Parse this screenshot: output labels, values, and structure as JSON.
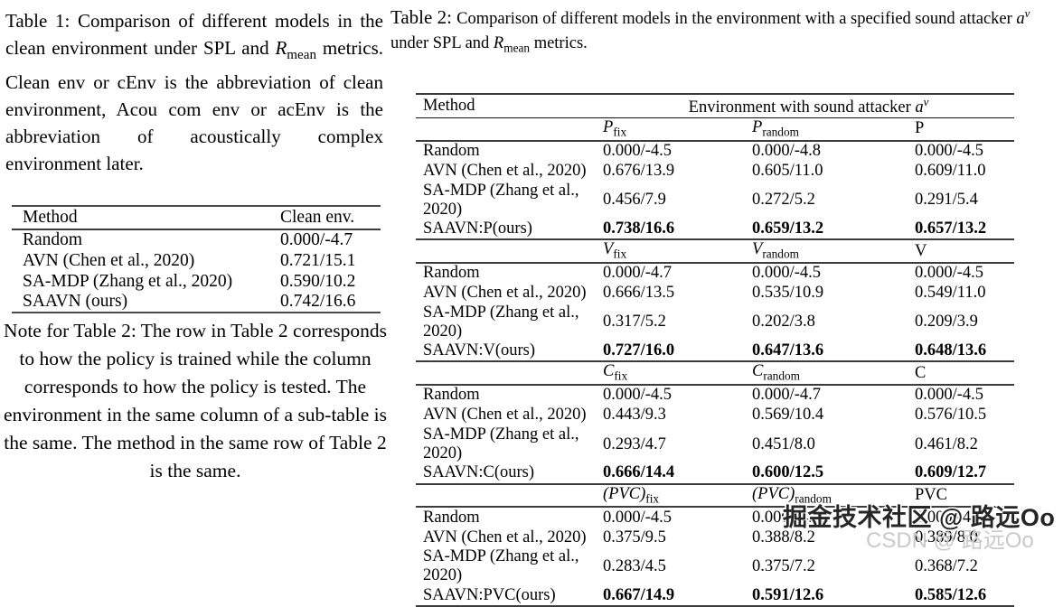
{
  "left_column": {
    "table1_caption_segments": [
      {
        "t": "Table 1:  Comparison of different models in the clean environment under SPL and ",
        "s": ""
      },
      {
        "t": "R",
        "s": "i"
      },
      {
        "t": "mean",
        "s": "sub"
      },
      {
        "t": " metrics. Clean env or cEnv is the abbreviation of clean environment, Acou com env or acEnv is the abbreviation of acoustically complex environment later.",
        "s": ""
      }
    ],
    "table1": {
      "headers": [
        "Method",
        "Clean env."
      ],
      "rows": [
        {
          "method": "Random",
          "value": "0.000/-4.7",
          "bold": false
        },
        {
          "method": "AVN (Chen et al., 2020)",
          "value": "0.721/15.1",
          "bold": false
        },
        {
          "method": "SA-MDP (Zhang et al., 2020)",
          "value": "0.590/10.2",
          "bold": false
        },
        {
          "method": "SAAVN (ours)",
          "value": "0.742/16.6",
          "bold": true
        }
      ]
    },
    "note_text": "Note for Table 2: The row in Table 2 corresponds to how the policy is trained while the column corresponds to how the policy is tested. The environment in the same column of a sub-table is the same. The method in the same row of Table 2 is the same."
  },
  "right_column": {
    "table2_caption_segments": [
      {
        "t": "Table 2: ",
        "s": "label"
      },
      {
        "t": "Comparison of different models in the environment with a specified sound attacker ",
        "s": ""
      },
      {
        "t": "a",
        "s": "i"
      },
      {
        "t": "ν",
        "s": "isup"
      },
      {
        "t": " under SPL and ",
        "s": ""
      },
      {
        "t": "R",
        "s": "i"
      },
      {
        "t": "mean",
        "s": "sub"
      },
      {
        "t": " metrics.",
        "s": ""
      }
    ],
    "table2": {
      "header": {
        "method": "Method",
        "span_segments": [
          {
            "t": "Environment with sound attacker ",
            "s": ""
          },
          {
            "t": "a",
            "s": "i"
          },
          {
            "t": "ν",
            "s": "isup"
          }
        ]
      },
      "blocks": [
        {
          "columns": [
            {
              "base": "P",
              "sub": "fix",
              "italic": true
            },
            {
              "base": "P",
              "sub": "random",
              "italic": true
            },
            {
              "base": "P",
              "sub": "",
              "italic": false
            }
          ],
          "rows": [
            {
              "method": "Random",
              "values": [
                "0.000/-4.5",
                "0.000/-4.8",
                "0.000/-4.5"
              ],
              "bold": false
            },
            {
              "method": "AVN (Chen et al., 2020)",
              "values": [
                "0.676/13.9",
                "0.605/11.0",
                "0.609/11.0"
              ],
              "bold": false
            },
            {
              "method": "SA-MDP (Zhang et al., 2020)",
              "values": [
                "0.456/7.9",
                "0.272/5.2",
                "0.291/5.4"
              ],
              "bold": false
            },
            {
              "method": "SAAVN:P(ours)",
              "values": [
                "0.738/16.6",
                "0.659/13.2",
                "0.657/13.2"
              ],
              "bold": true
            }
          ]
        },
        {
          "columns": [
            {
              "base": "V",
              "sub": "fix",
              "italic": true
            },
            {
              "base": "V",
              "sub": "random",
              "italic": true
            },
            {
              "base": "V",
              "sub": "",
              "italic": false
            }
          ],
          "rows": [
            {
              "method": "Random",
              "values": [
                "0.000/-4.7",
                "0.000/-4.5",
                "0.000/-4.5"
              ],
              "bold": false
            },
            {
              "method": "AVN (Chen et al., 2020)",
              "values": [
                "0.666/13.5",
                "0.535/10.9",
                "0.549/11.0"
              ],
              "bold": false
            },
            {
              "method": "SA-MDP (Zhang et al., 2020)",
              "values": [
                "0.317/5.2",
                "0.202/3.8",
                "0.209/3.9"
              ],
              "bold": false
            },
            {
              "method": "SAAVN:V(ours)",
              "values": [
                "0.727/16.0",
                "0.647/13.6",
                "0.648/13.6"
              ],
              "bold": true
            }
          ]
        },
        {
          "columns": [
            {
              "base": "C",
              "sub": "fix",
              "italic": true
            },
            {
              "base": "C",
              "sub": "random",
              "italic": true
            },
            {
              "base": "C",
              "sub": "",
              "italic": false
            }
          ],
          "rows": [
            {
              "method": "Random",
              "values": [
                "0.000/-4.5",
                "0.000/-4.7",
                "0.000/-4.5"
              ],
              "bold": false
            },
            {
              "method": "AVN (Chen et al., 2020)",
              "values": [
                "0.443/9.3",
                "0.569/10.4",
                "0.576/10.5"
              ],
              "bold": false
            },
            {
              "method": "SA-MDP (Zhang et al., 2020)",
              "values": [
                "0.293/4.7",
                "0.451/8.0",
                "0.461/8.2"
              ],
              "bold": false
            },
            {
              "method": "SAAVN:C(ours)",
              "values": [
                "0.666/14.4",
                "0.600/12.5",
                "0.609/12.7"
              ],
              "bold": true
            }
          ]
        },
        {
          "columns": [
            {
              "base": "(PVC)",
              "sub": "fix",
              "italic": true
            },
            {
              "base": "(PVC)",
              "sub": "random",
              "italic": true
            },
            {
              "base": "PVC",
              "sub": "",
              "italic": false
            }
          ],
          "rows": [
            {
              "method": "Random",
              "values": [
                "0.000/-4.5",
                "0.000/-4.7",
                "0.000/-4.5"
              ],
              "bold": false
            },
            {
              "method": "AVN (Chen et al., 2020)",
              "values": [
                "0.375/9.5",
                "0.388/8.2",
                "0.389/8.0"
              ],
              "bold": false
            },
            {
              "method": "SA-MDP (Zhang et al., 2020)",
              "values": [
                "0.283/4.5",
                "0.375/7.2",
                "0.368/7.2"
              ],
              "bold": false
            },
            {
              "method": "SAAVN:PVC(ours)",
              "values": [
                "0.667/14.9",
                "0.591/12.6",
                "0.585/12.6"
              ],
              "bold": true
            }
          ]
        }
      ]
    }
  },
  "watermarks": {
    "dark_text": "掘金技术社区 @ 路远Oo",
    "dark_color": "#262626",
    "light_text": "CSDN @ 路远Oo",
    "light_color": "#c9c9c9"
  }
}
